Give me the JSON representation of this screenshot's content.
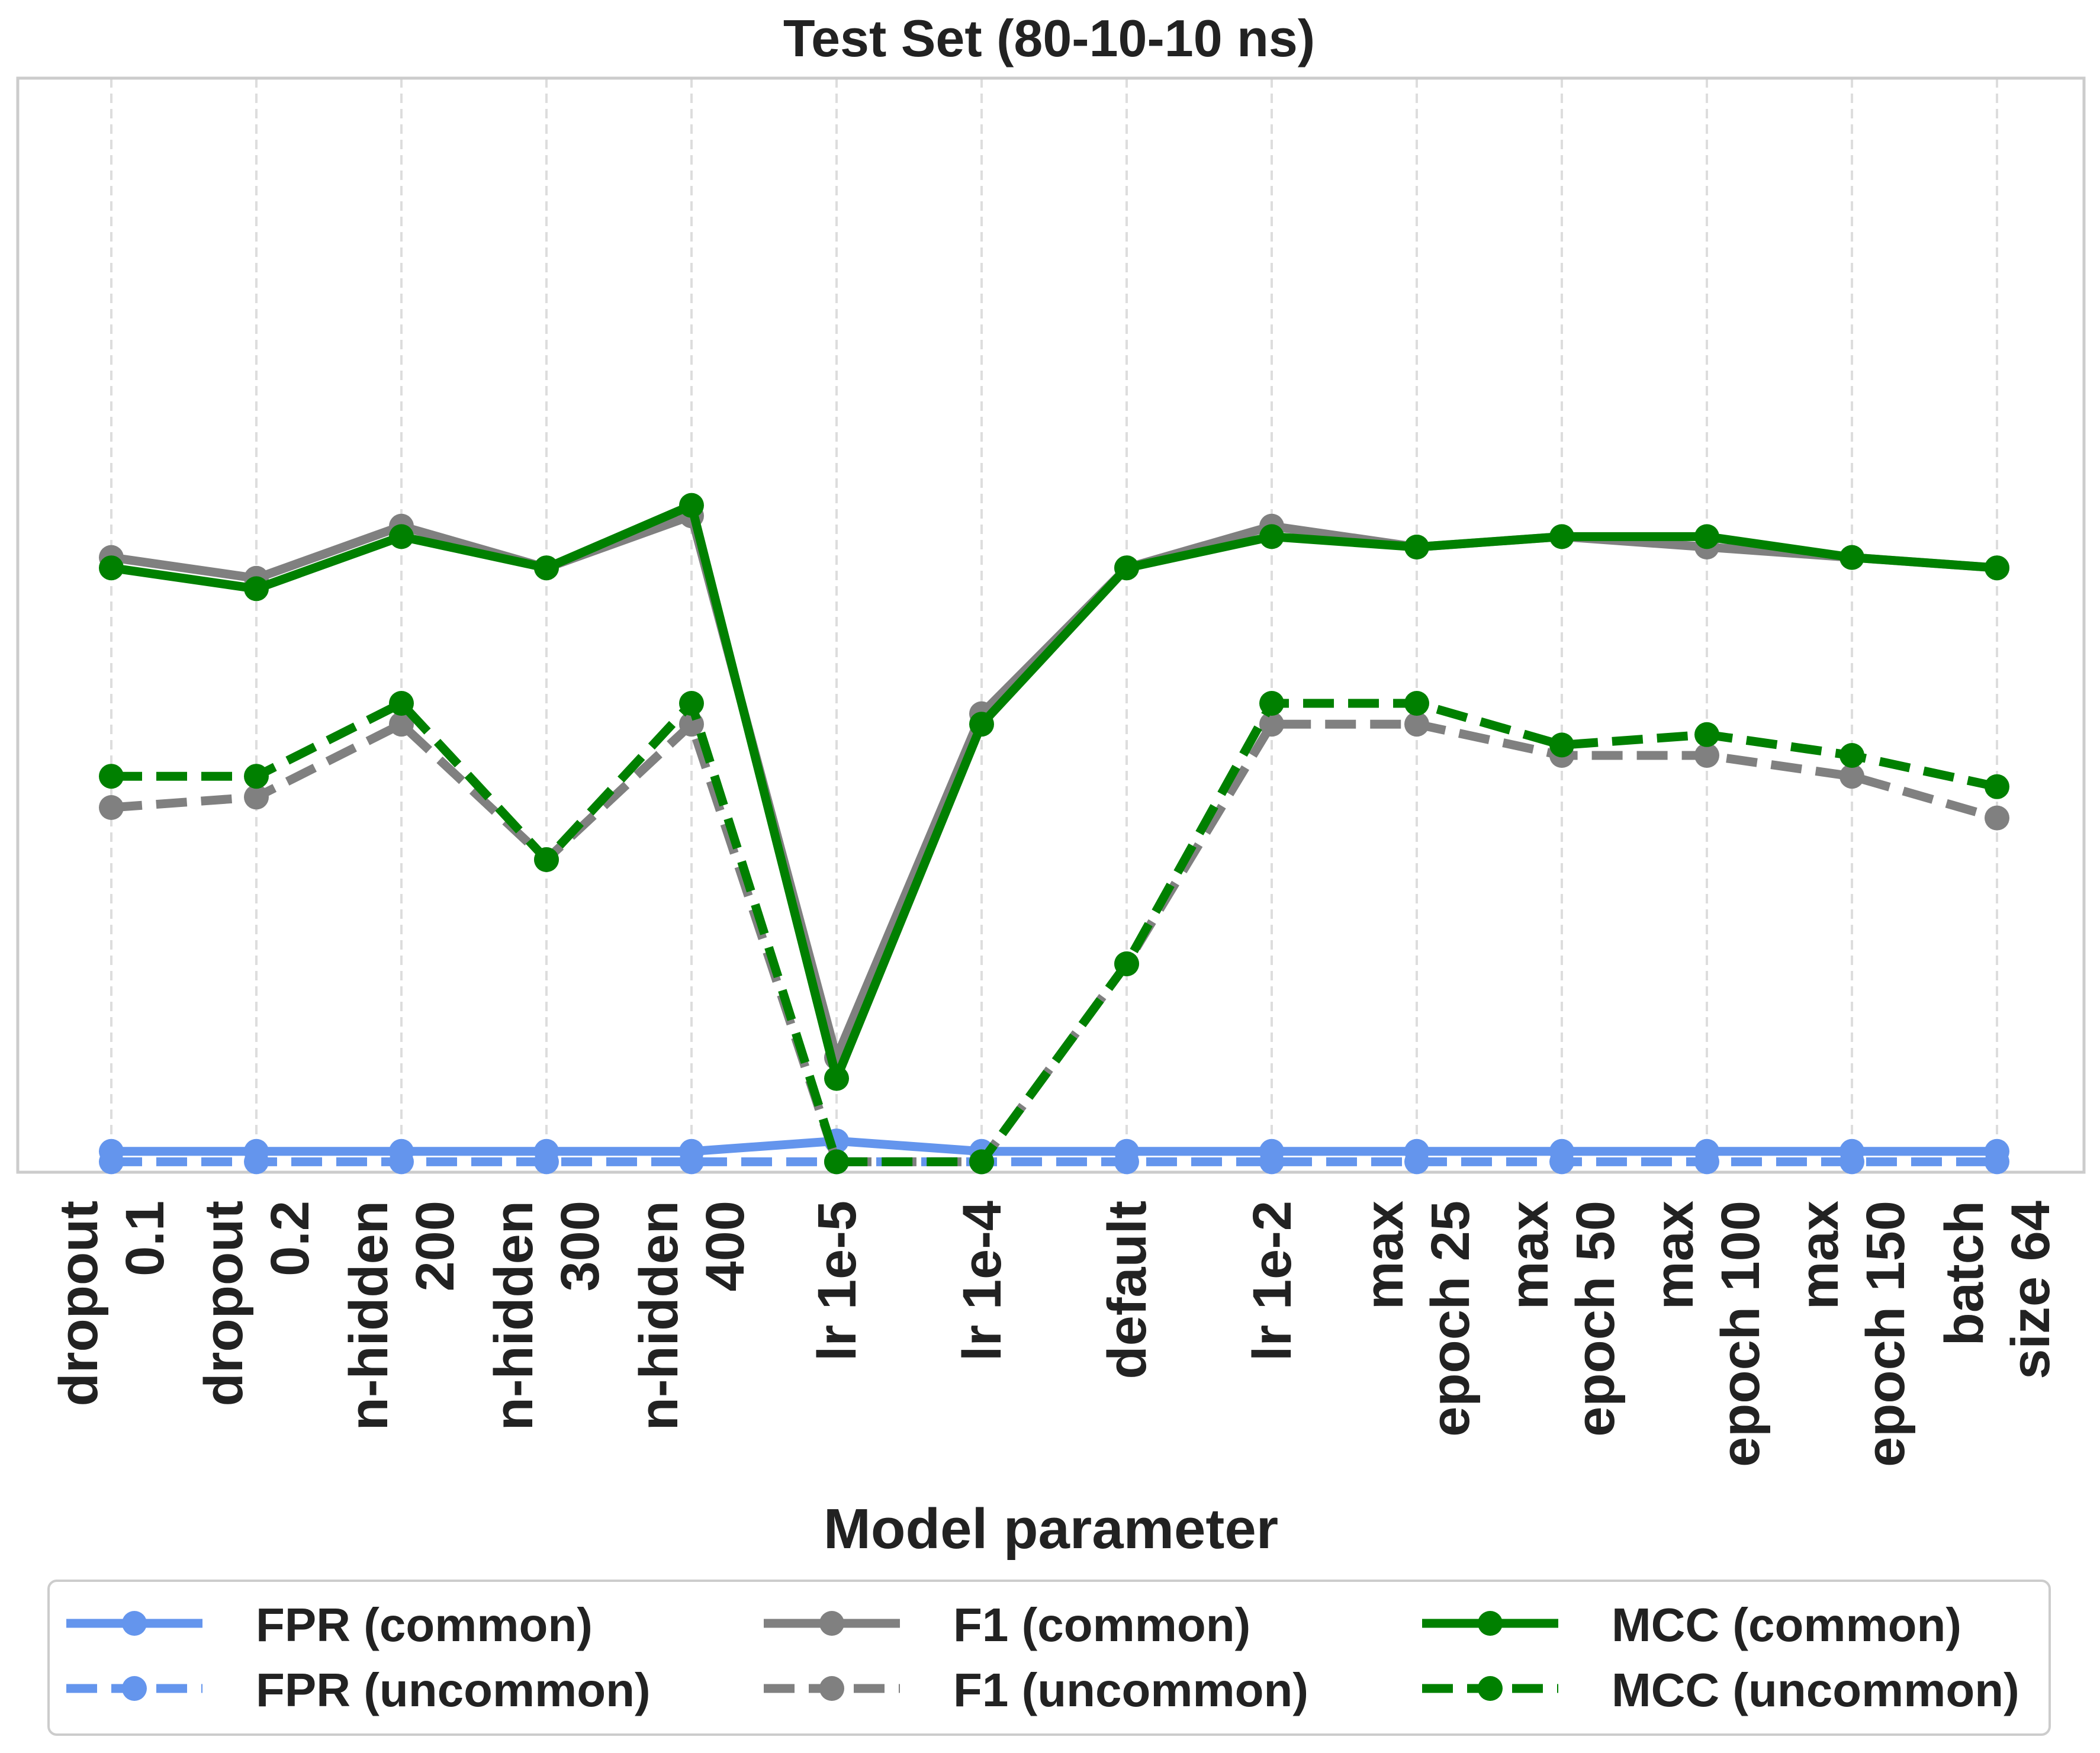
{
  "chart_data": {
    "type": "line",
    "title": "Test Set (80-10-10 ns)",
    "xlabel": "Model parameter",
    "ylabel": "",
    "ylim": [
      0,
      1.05
    ],
    "grid": "vertical dashed",
    "legend_placement": "bottom",
    "categories": [
      [
        "dropout",
        "0.1"
      ],
      [
        "dropout",
        "0.2"
      ],
      [
        "n-hidden",
        "200"
      ],
      [
        "n-hidden",
        "300"
      ],
      [
        "n-hidden",
        "400"
      ],
      [
        "lr 1e-5"
      ],
      [
        "lr 1e-4"
      ],
      [
        "default"
      ],
      [
        "lr 1e-2"
      ],
      [
        "max",
        "epoch 25"
      ],
      [
        "max",
        "epoch 50"
      ],
      [
        "max",
        "epoch 100"
      ],
      [
        "max",
        "epoch 150"
      ],
      [
        "batch",
        "size 64"
      ]
    ],
    "series": [
      {
        "name": "FPR (common)",
        "color": "#6495ED",
        "dash": "solid",
        "values": [
          0.02,
          0.02,
          0.02,
          0.02,
          0.02,
          0.03,
          0.02,
          0.02,
          0.02,
          0.02,
          0.02,
          0.02,
          0.02,
          0.02
        ]
      },
      {
        "name": "FPR (uncommon)",
        "color": "#6495ED",
        "dash": "dashed",
        "values": [
          0.01,
          0.01,
          0.01,
          0.01,
          0.01,
          0.01,
          0.01,
          0.01,
          0.01,
          0.01,
          0.01,
          0.01,
          0.01,
          0.01
        ]
      },
      {
        "name": "F1 (common)",
        "color": "#808080",
        "dash": "solid",
        "values": [
          0.59,
          0.57,
          0.62,
          0.58,
          0.63,
          0.11,
          0.44,
          0.58,
          0.62,
          0.6,
          0.61,
          0.6,
          0.59,
          0.58
        ]
      },
      {
        "name": "F1 (uncommon)",
        "color": "#808080",
        "dash": "dashed",
        "values": [
          0.35,
          0.36,
          0.43,
          0.3,
          0.43,
          0.01,
          0.01,
          0.2,
          0.43,
          0.43,
          0.4,
          0.4,
          0.38,
          0.34
        ]
      },
      {
        "name": "MCC (common)",
        "color": "#008000",
        "dash": "solid",
        "values": [
          0.58,
          0.56,
          0.61,
          0.58,
          0.64,
          0.09,
          0.43,
          0.58,
          0.61,
          0.6,
          0.61,
          0.61,
          0.59,
          0.58
        ]
      },
      {
        "name": "MCC (uncommon)",
        "color": "#008000",
        "dash": "dashed",
        "values": [
          0.38,
          0.38,
          0.45,
          0.3,
          0.45,
          0.01,
          0.01,
          0.2,
          0.45,
          0.45,
          0.41,
          0.42,
          0.4,
          0.37
        ]
      }
    ]
  }
}
